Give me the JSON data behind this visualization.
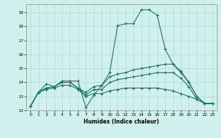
{
  "xlabel": "Humidex (Indice chaleur)",
  "background_color": "#cff0ec",
  "grid_color": "#b0d8d4",
  "line_color": "#1a7060",
  "xlim": [
    -0.5,
    23.5
  ],
  "ylim": [
    12.0,
    19.6
  ],
  "yticks": [
    12,
    13,
    14,
    15,
    16,
    17,
    18,
    19
  ],
  "xticks": [
    0,
    1,
    2,
    3,
    4,
    5,
    6,
    7,
    8,
    9,
    10,
    11,
    12,
    13,
    14,
    15,
    16,
    17,
    18,
    19,
    20,
    21,
    22,
    23
  ],
  "line1_x": [
    0,
    1,
    2,
    3,
    4,
    5,
    6,
    7,
    8,
    9,
    10,
    11,
    12,
    13,
    14,
    15,
    16,
    17,
    18,
    19,
    20,
    21,
    22,
    23
  ],
  "line1_y": [
    12.3,
    13.3,
    13.9,
    13.7,
    14.1,
    14.1,
    14.1,
    12.2,
    13.1,
    13.8,
    14.7,
    18.05,
    18.2,
    18.2,
    19.2,
    19.2,
    18.8,
    16.4,
    15.3,
    14.7,
    14.0,
    13.0,
    12.5,
    12.5
  ],
  "line2_x": [
    0,
    1,
    2,
    3,
    4,
    5,
    6,
    7,
    8,
    9,
    10,
    11,
    12,
    13,
    14,
    15,
    16,
    17,
    18,
    19,
    20,
    21,
    22,
    23
  ],
  "line2_y": [
    12.3,
    13.3,
    13.6,
    13.7,
    14.0,
    14.0,
    13.6,
    13.3,
    13.7,
    13.8,
    14.4,
    14.6,
    14.7,
    14.9,
    15.0,
    15.1,
    15.2,
    15.3,
    15.3,
    14.8,
    14.0,
    13.0,
    12.5,
    12.5
  ],
  "line3_x": [
    0,
    1,
    2,
    3,
    4,
    5,
    6,
    7,
    8,
    9,
    10,
    11,
    12,
    13,
    14,
    15,
    16,
    17,
    18,
    19,
    20,
    21,
    22,
    23
  ],
  "line3_y": [
    12.3,
    13.3,
    13.6,
    13.7,
    14.0,
    14.0,
    13.6,
    13.1,
    13.5,
    13.5,
    14.0,
    14.2,
    14.3,
    14.4,
    14.5,
    14.6,
    14.7,
    14.7,
    14.7,
    14.3,
    13.7,
    12.8,
    12.5,
    12.5
  ],
  "line4_x": [
    0,
    1,
    2,
    3,
    4,
    5,
    6,
    7,
    8,
    9,
    10,
    11,
    12,
    13,
    14,
    15,
    16,
    17,
    18,
    19,
    20,
    21,
    22,
    23
  ],
  "line4_y": [
    12.3,
    13.3,
    13.5,
    13.6,
    13.8,
    13.8,
    13.5,
    13.0,
    13.2,
    13.2,
    13.4,
    13.5,
    13.6,
    13.6,
    13.6,
    13.6,
    13.6,
    13.5,
    13.4,
    13.2,
    13.0,
    12.8,
    12.5,
    12.5
  ]
}
